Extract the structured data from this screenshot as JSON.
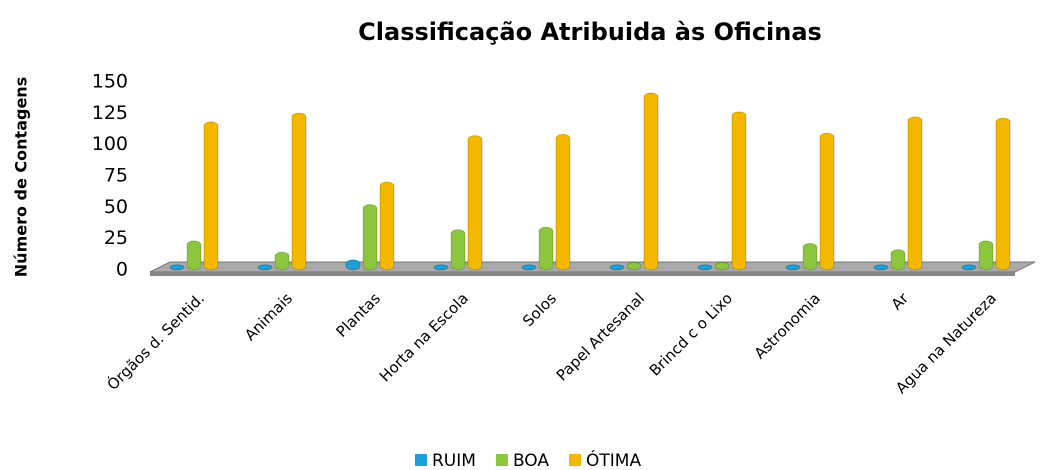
{
  "chart_data": {
    "type": "bar",
    "title": "Classificação Atribuida às Oficinas",
    "y_label": "Número de Contagens",
    "categories": [
      "Órgãos d. Sentid.",
      "Animais",
      "Plantas",
      "Horta na Escola",
      "Solos",
      "Papel Artesanal",
      "Brincd c o Lixo",
      "Astronomia",
      "Ar",
      "Agua na Natureza"
    ],
    "series": [
      {
        "name": "RUIM",
        "color": "#1e9fd8",
        "values": [
          1,
          1,
          5,
          1,
          1,
          1,
          1,
          1,
          1,
          1
        ]
      },
      {
        "name": "BOA",
        "color": "#8cc63f",
        "values": [
          20,
          11,
          49,
          29,
          31,
          3,
          3,
          18,
          13,
          20
        ]
      },
      {
        "name": "ÓTIMA",
        "color": "#f5b800",
        "values": [
          115,
          122,
          67,
          104,
          105,
          138,
          123,
          106,
          119,
          118
        ]
      }
    ],
    "ylim": [
      0,
      150
    ],
    "yticks": [
      0,
      25,
      50,
      75,
      100,
      125,
      150
    ],
    "legend": "bottom"
  }
}
